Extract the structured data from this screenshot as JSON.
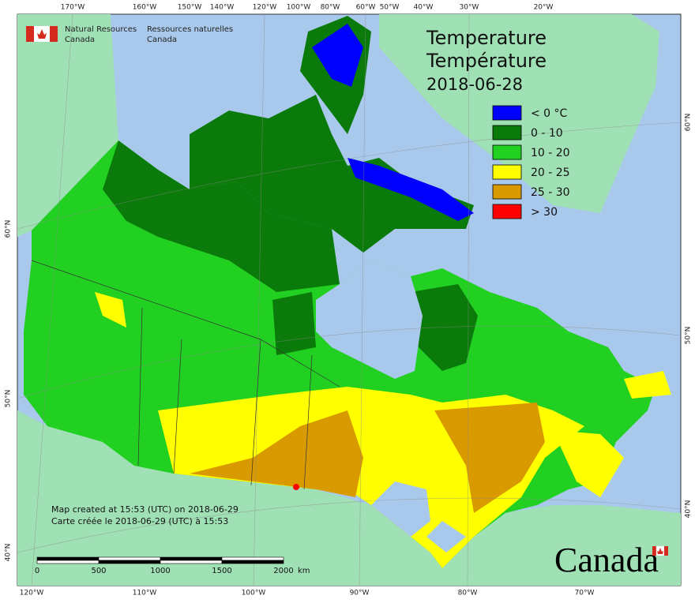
{
  "header": {
    "department_en": [
      "Natural Resources",
      "Canada"
    ],
    "department_fr": [
      "Ressources naturelles",
      "Canada"
    ]
  },
  "title": {
    "lines": [
      "Temperature",
      "Température"
    ],
    "date": "2018-06-28"
  },
  "legend": [
    {
      "label": "< 0 °C",
      "color": "#0000ff"
    },
    {
      "label": "0 - 10",
      "color": "#0a7a0a"
    },
    {
      "label": "10 - 20",
      "color": "#22d022"
    },
    {
      "label": "20 - 25",
      "color": "#ffff00"
    },
    {
      "label": "25 - 30",
      "color": "#d99a00"
    },
    {
      "label": "> 30",
      "color": "#ff0000"
    }
  ],
  "graticule": {
    "top": [
      "170°W",
      "160°W",
      "150°W",
      "140°W",
      "120°W",
      "100°W",
      "80°W",
      "60°W",
      "50°W",
      "40°W",
      "30°W",
      "20°W"
    ],
    "bottom": [
      "120°W",
      "110°W",
      "100°W",
      "90°W",
      "80°W",
      "70°W"
    ],
    "left": [
      "60°N",
      "50°N",
      "40°N"
    ],
    "right": [
      "60°N",
      "50°N",
      "40°N"
    ]
  },
  "footer": {
    "created_en": "Map created at 15:53 (UTC) on 2018-06-29",
    "created_fr": "Carte créée le 2018-06-29 (UTC) à 15:53"
  },
  "scale_bar": {
    "labels": [
      "0",
      "500",
      "1000",
      "1500",
      "2000"
    ],
    "unit": "km"
  },
  "wordmark": "Canada"
}
